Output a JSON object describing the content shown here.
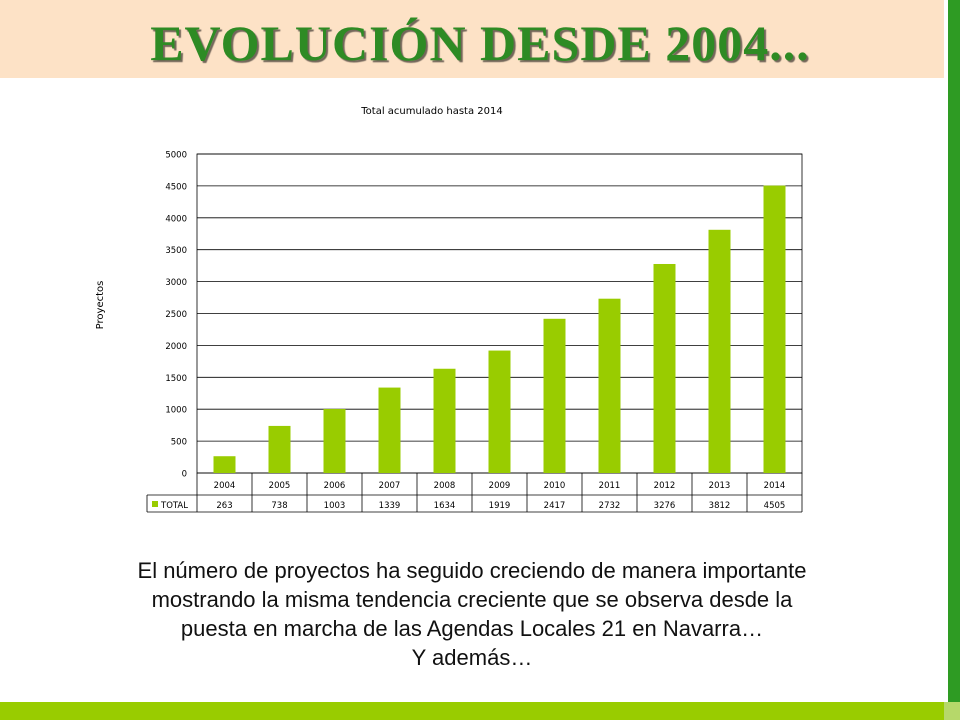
{
  "slide": {
    "title": "EVOLUCIÓN DESDE 2004...",
    "caption_lines": [
      "El número de proyectos ha seguido creciendo de manera importante",
      "mostrando la misma tendencia creciente que se observa desde la",
      "puesta en marcha de las Agendas Locales 21 en Navarra…",
      "Y además…"
    ]
  },
  "colors": {
    "title": "#2e8b24",
    "title_band": "#fde2c6",
    "bar": "#99cc00",
    "side_stripe": "#2e9b23",
    "bottom_bar": "#99cc00"
  },
  "chart_data": {
    "type": "bar",
    "title": "Total acumulado hasta 2014",
    "ylabel": "Proyectos",
    "xlabel": "",
    "categories": [
      "2004",
      "2005",
      "2006",
      "2007",
      "2008",
      "2009",
      "2010",
      "2011",
      "2012",
      "2013",
      "2014"
    ],
    "series": [
      {
        "name": "TOTAL",
        "values": [
          263,
          738,
          1003,
          1339,
          1634,
          1919,
          2417,
          2732,
          3276,
          3812,
          4505
        ]
      }
    ],
    "ylim": [
      0,
      5000
    ],
    "yticks": [
      0,
      500,
      1000,
      1500,
      2000,
      2500,
      3000,
      3500,
      4000,
      4500,
      5000
    ],
    "grid": true,
    "legend": "data-table"
  }
}
